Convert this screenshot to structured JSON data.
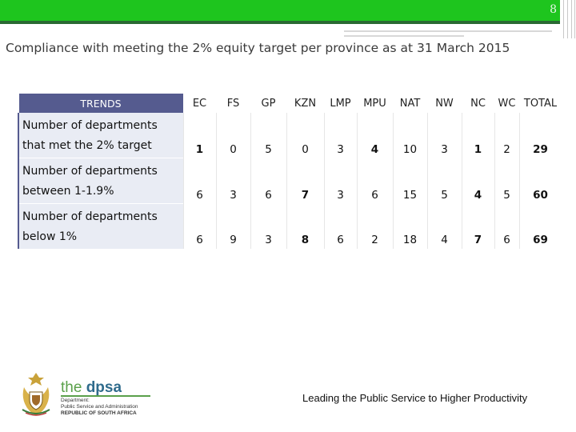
{
  "header": {
    "page_number": "8",
    "accent_color": "#1ec51e",
    "accent_dark": "#2a6a33"
  },
  "title": "Compliance with meeting the 2% equity target per province as at 31 March 2015",
  "table": {
    "header_color": "#555b8f",
    "trend_header": "TRENDS",
    "columns": [
      "EC",
      "FS",
      "GP",
      "KZN",
      "LMP",
      "MPU",
      "NAT",
      "NW",
      "NC",
      "WC",
      "TOTAL"
    ],
    "rows": [
      {
        "label": "Number of departments that met the 2% target",
        "values": [
          "1",
          "0",
          "5",
          "0",
          "3",
          "4",
          "10",
          "3",
          "1",
          "2",
          "29"
        ]
      },
      {
        "label": "Number of departments between 1-1.9%",
        "values": [
          "6",
          "3",
          "6",
          "7",
          "3",
          "6",
          "15",
          "5",
          "4",
          "5",
          "60"
        ]
      },
      {
        "label": "Number of departments below 1%",
        "values": [
          "6",
          "9",
          "3",
          "8",
          "6",
          "2",
          "18",
          "4",
          "7",
          "6",
          "69"
        ]
      }
    ]
  },
  "logo": {
    "emblem": "coat-of-arms-icon",
    "the": "the ",
    "name": "dpsa",
    "line1": "Department:",
    "line2": "Public Service and Administration",
    "line3": "REPUBLIC OF SOUTH AFRICA"
  },
  "footer": {
    "tagline": "Leading the Public Service to Higher Productivity"
  }
}
